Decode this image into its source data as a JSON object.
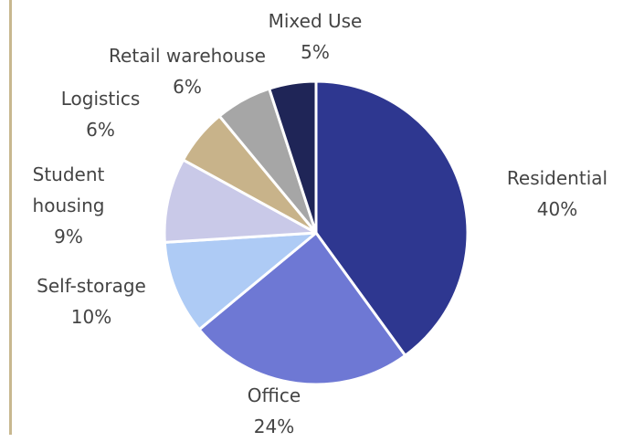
{
  "chart_data": {
    "type": "pie",
    "categories": [
      "Residential",
      "Office",
      "Self-storage",
      "Student housing",
      "Logistics",
      "Retail warehouse",
      "Mixed Use"
    ],
    "values": [
      40,
      24,
      10,
      9,
      6,
      6,
      5
    ],
    "value_labels": [
      "40%",
      "24%",
      "10%",
      "9%",
      "6%",
      "6%",
      "5%"
    ],
    "colors": [
      "#2e3790",
      "#6e78d4",
      "#aecbf5",
      "#c9c9e8",
      "#c8b38a",
      "#a6a6a6",
      "#1f2557"
    ]
  }
}
